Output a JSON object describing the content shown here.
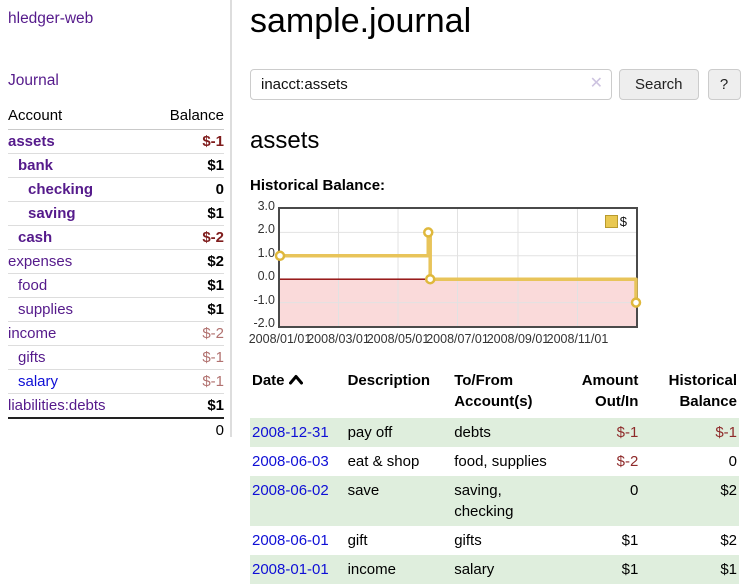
{
  "sidebar": {
    "app_title": "hledger-web",
    "journal_link": "Journal",
    "accounts_table": {
      "headers": {
        "account": "Account",
        "balance": "Balance"
      },
      "rows": [
        {
          "name": "assets",
          "depth": 1,
          "emphasis": true,
          "balance": "$-1",
          "balance_style": "negative-strong"
        },
        {
          "name": "bank",
          "depth": 2,
          "emphasis": true,
          "balance": "$1",
          "balance_style": "strong"
        },
        {
          "name": "checking",
          "depth": 3,
          "emphasis": true,
          "balance": "0",
          "balance_style": "strong"
        },
        {
          "name": "saving",
          "depth": 3,
          "emphasis": true,
          "balance": "$1",
          "balance_style": "strong"
        },
        {
          "name": "cash",
          "depth": 2,
          "emphasis": true,
          "balance": "$-2",
          "balance_style": "negative-strong"
        },
        {
          "name": "expenses",
          "depth": 1,
          "emphasis": false,
          "balance": "$2",
          "balance_style": "strong"
        },
        {
          "name": "food",
          "depth": 2,
          "emphasis": false,
          "balance": "$1",
          "balance_style": "strong"
        },
        {
          "name": "supplies",
          "depth": 2,
          "emphasis": false,
          "balance": "$1",
          "balance_style": "strong"
        },
        {
          "name": "income",
          "depth": 1,
          "emphasis": false,
          "balance": "$-2",
          "balance_style": "negative-muted"
        },
        {
          "name": "gifts",
          "depth": 2,
          "emphasis": false,
          "balance": "$-1",
          "balance_style": "negative-muted"
        },
        {
          "name": "salary",
          "depth": 2,
          "emphasis": false,
          "unvisited": true,
          "balance": "$-1",
          "balance_style": "negative-muted"
        },
        {
          "name": "liabilities:debts",
          "depth": 1,
          "emphasis": false,
          "balance": "$1",
          "balance_style": "strong"
        }
      ],
      "total": "0"
    }
  },
  "main": {
    "title": "sample.journal",
    "search": {
      "value": "inacct:assets",
      "clear_icon": "✕",
      "search_button": "Search",
      "help_button": "?"
    },
    "account_heading": "assets",
    "chart_label": "Historical Balance:",
    "chart_data": {
      "type": "line",
      "step": true,
      "title": "Historical Balance:",
      "series": [
        {
          "name": "$",
          "points": [
            [
              "2008-01-01",
              1
            ],
            [
              "2008-06-01",
              2
            ],
            [
              "2008-06-03",
              0
            ],
            [
              "2008-12-31",
              -1
            ]
          ]
        }
      ],
      "ylim": [
        -2,
        3
      ],
      "yticks": [
        3.0,
        2.0,
        1.0,
        0.0,
        -1.0,
        -2.0
      ],
      "xticks": [
        {
          "date": "2008-01-01",
          "label": "2008/01/01"
        },
        {
          "date": "2008-03-01",
          "label": "2008/03/01"
        },
        {
          "date": "2008-05-01",
          "label": "2008/05/01"
        },
        {
          "date": "2008-07-01",
          "label": "2008/07/01"
        },
        {
          "date": "2008-09-01",
          "label": "2008/09/01"
        },
        {
          "date": "2008-11-01",
          "label": "2008/11/01"
        }
      ],
      "x_start": "2008-01-01",
      "x_end": "2008-12-31",
      "legend": {
        "label": "$",
        "position": "top-right"
      },
      "negative_region_shaded": true,
      "grid": true
    },
    "register_table": {
      "headers": {
        "date": "Date",
        "description": "Description",
        "accounts": "To/From Account(s)",
        "amount": "Amount Out/In",
        "balance": "Historical Balance"
      },
      "rows": [
        {
          "date": "2008-12-31",
          "description": "pay off",
          "accounts": "debts",
          "amount": "$-1",
          "amount_negative": true,
          "balance": "$-1",
          "balance_negative": true
        },
        {
          "date": "2008-06-03",
          "description": "eat & shop",
          "accounts": "food, supplies",
          "amount": "$-2",
          "amount_negative": true,
          "balance": "0",
          "balance_negative": false
        },
        {
          "date": "2008-06-02",
          "description": "save",
          "accounts": "saving, checking",
          "amount": "0",
          "amount_negative": false,
          "balance": "$2",
          "balance_negative": false
        },
        {
          "date": "2008-06-01",
          "description": "gift",
          "accounts": "gifts",
          "amount": "$1",
          "amount_negative": false,
          "balance": "$2",
          "balance_negative": false
        },
        {
          "date": "2008-01-01",
          "description": "income",
          "accounts": "salary",
          "amount": "$1",
          "amount_negative": false,
          "balance": "$1",
          "balance_negative": false
        }
      ]
    }
  },
  "colors": {
    "link_purple": "#551a8b",
    "link_blue": "#0f0fd6",
    "negative_strong": "#7f1c1c",
    "negative_muted": "#b1716f",
    "table_negative": "#8e2a2a",
    "row_green": "#dfeedd",
    "chart_line": "#e8c45a",
    "chart_marker_stroke": "#dfb83c",
    "zero_line": "#8b0000",
    "negative_region": "#fadada",
    "legend_fill": "#e9c851",
    "legend_border": "#b89a2e"
  }
}
